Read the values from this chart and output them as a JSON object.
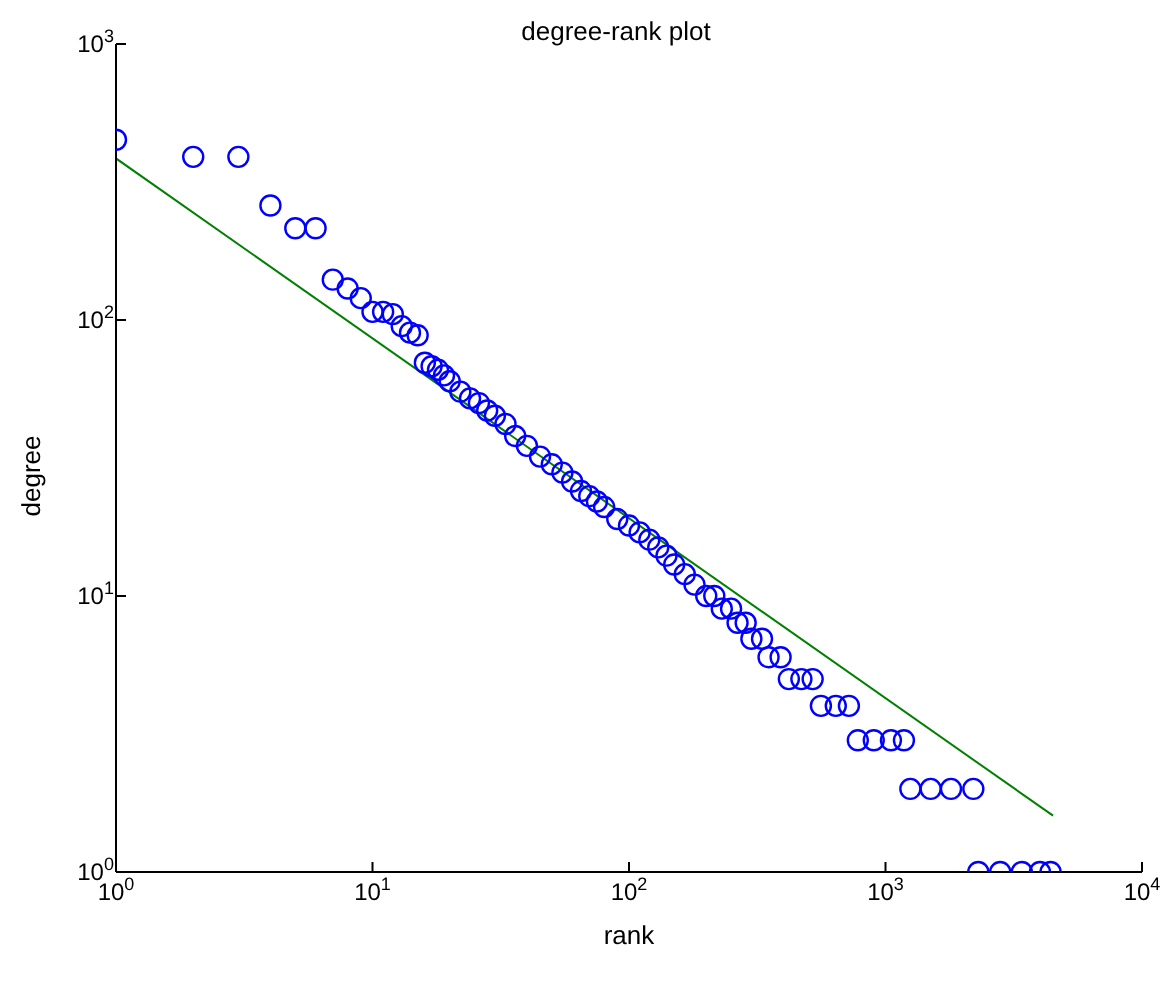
{
  "chart_data": {
    "type": "scatter",
    "title": "degree-rank plot",
    "xlabel": "rank",
    "ylabel": "degree",
    "log": "xy",
    "xlim": [
      1,
      10000
    ],
    "ylim": [
      1,
      1000
    ],
    "xticks": [
      {
        "value": 1,
        "label": "10$^{0}$"
      },
      {
        "value": 10,
        "label": "10$^{1}$"
      },
      {
        "value": 100,
        "label": "10$^{2}$"
      },
      {
        "value": 1000,
        "label": "10$^{3}$"
      },
      {
        "value": 10000,
        "label": "10$^{4}$"
      }
    ],
    "yticks": [
      {
        "value": 1,
        "label": "10$^{0}$"
      },
      {
        "value": 10,
        "label": "10$^{1}$"
      },
      {
        "value": 100,
        "label": "10$^{2}$"
      },
      {
        "value": 1000,
        "label": "10$^{3}$"
      }
    ],
    "series": [
      {
        "type": "scatter",
        "color": "#0000ff",
        "marker": "circle",
        "x": [
          1,
          2,
          3,
          4,
          5,
          6,
          7,
          8,
          9,
          10,
          11,
          12,
          13,
          14,
          15,
          16,
          17,
          18,
          19,
          20,
          22,
          24,
          26,
          28,
          30,
          33,
          36,
          40,
          45,
          50,
          55,
          60,
          65,
          70,
          75,
          80,
          90,
          100,
          110,
          120,
          130,
          140,
          150,
          165,
          180,
          200,
          215,
          230,
          250,
          265,
          285,
          300,
          330,
          350,
          390,
          420,
          470,
          520,
          560,
          640,
          720,
          780,
          900,
          1050,
          1180,
          1250,
          1500,
          1800,
          2200,
          2300,
          2800,
          3400,
          4000,
          4400
        ],
        "values": [
          450,
          390,
          390,
          260,
          215,
          215,
          140,
          130,
          120,
          107,
          107,
          105,
          95,
          90,
          88,
          70,
          68,
          66,
          63,
          60,
          55,
          52,
          50,
          47,
          45,
          42,
          38,
          35,
          32,
          30,
          28,
          26,
          24,
          23,
          22,
          21,
          19,
          18,
          17,
          16,
          15,
          14,
          13,
          12,
          11,
          10,
          10,
          9,
          9,
          8,
          8,
          7,
          7,
          6,
          6,
          5,
          5,
          5,
          4,
          4,
          4,
          3,
          3,
          3,
          3,
          2,
          2,
          2,
          2,
          1,
          1,
          1,
          1,
          1
        ]
      },
      {
        "type": "line",
        "color": "#008000",
        "marker": "none",
        "x": [
          1,
          4500
        ],
        "values": [
          385,
          1.6
        ]
      }
    ]
  }
}
